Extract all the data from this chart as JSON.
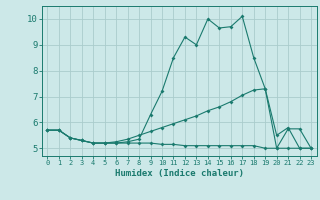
{
  "xlabel": "Humidex (Indice chaleur)",
  "bg_color": "#cce8e8",
  "grid_color": "#aacccc",
  "line_color": "#1a7a6e",
  "xlim": [
    -0.5,
    23.5
  ],
  "ylim": [
    4.7,
    10.5
  ],
  "xticks": [
    0,
    1,
    2,
    3,
    4,
    5,
    6,
    7,
    8,
    9,
    10,
    11,
    12,
    13,
    14,
    15,
    16,
    17,
    18,
    19,
    20,
    21,
    22,
    23
  ],
  "yticks": [
    5,
    6,
    7,
    8,
    9,
    10
  ],
  "line1_y": [
    5.7,
    5.7,
    5.4,
    5.3,
    5.2,
    5.2,
    5.2,
    5.25,
    5.35,
    6.3,
    7.2,
    8.5,
    9.3,
    9.0,
    10.0,
    9.65,
    9.7,
    10.1,
    8.5,
    7.3,
    5.5,
    5.8,
    5.0,
    5.0
  ],
  "line2_y": [
    5.7,
    5.7,
    5.4,
    5.3,
    5.2,
    5.2,
    5.25,
    5.35,
    5.5,
    5.65,
    5.8,
    5.95,
    6.1,
    6.25,
    6.45,
    6.6,
    6.8,
    7.05,
    7.25,
    7.3,
    5.0,
    5.75,
    5.75,
    5.0
  ],
  "line3_y": [
    5.7,
    5.7,
    5.4,
    5.3,
    5.2,
    5.2,
    5.2,
    5.2,
    5.2,
    5.2,
    5.15,
    5.15,
    5.1,
    5.1,
    5.1,
    5.1,
    5.1,
    5.1,
    5.1,
    5.0,
    5.0,
    5.0,
    5.0,
    5.0
  ]
}
